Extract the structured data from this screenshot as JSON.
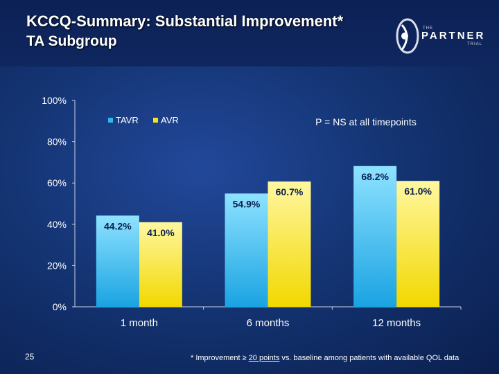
{
  "slide": {
    "title_line1": "KCCQ-Summary: Substantial Improvement*",
    "title_line2": "TA Subgroup",
    "page_number": "25",
    "footnote_pre": "* Improvement ≥ ",
    "footnote_underline": "20 points",
    "footnote_post": " vs. baseline among patients with available QOL data"
  },
  "logo": {
    "the": "THE",
    "name": "PARTNER",
    "trial": "TRIAL"
  },
  "colors": {
    "tavr": "#2fb8ec",
    "avr": "#f6e21c",
    "background": "#143473",
    "text": "#ffffff",
    "value_label": "#0b1f4e"
  },
  "chart_data": {
    "type": "bar",
    "categories": [
      "1 month",
      "6 months",
      "12 months"
    ],
    "series": [
      {
        "name": "TAVR",
        "values": [
          44.2,
          54.9,
          68.2
        ],
        "labels": [
          "44.2%",
          "54.9%",
          "68.2%"
        ]
      },
      {
        "name": "AVR",
        "values": [
          41.0,
          60.7,
          61.0
        ],
        "labels": [
          "41.0%",
          "60.7%",
          "61.0%"
        ]
      }
    ],
    "ylim": [
      0,
      100
    ],
    "yticks": [
      0,
      20,
      40,
      60,
      80,
      100
    ],
    "ytick_labels": [
      "0%",
      "20%",
      "40%",
      "60%",
      "80%",
      "100%"
    ],
    "annotation": "P = NS at all timepoints",
    "legend_position": "top-left",
    "grid": false
  }
}
